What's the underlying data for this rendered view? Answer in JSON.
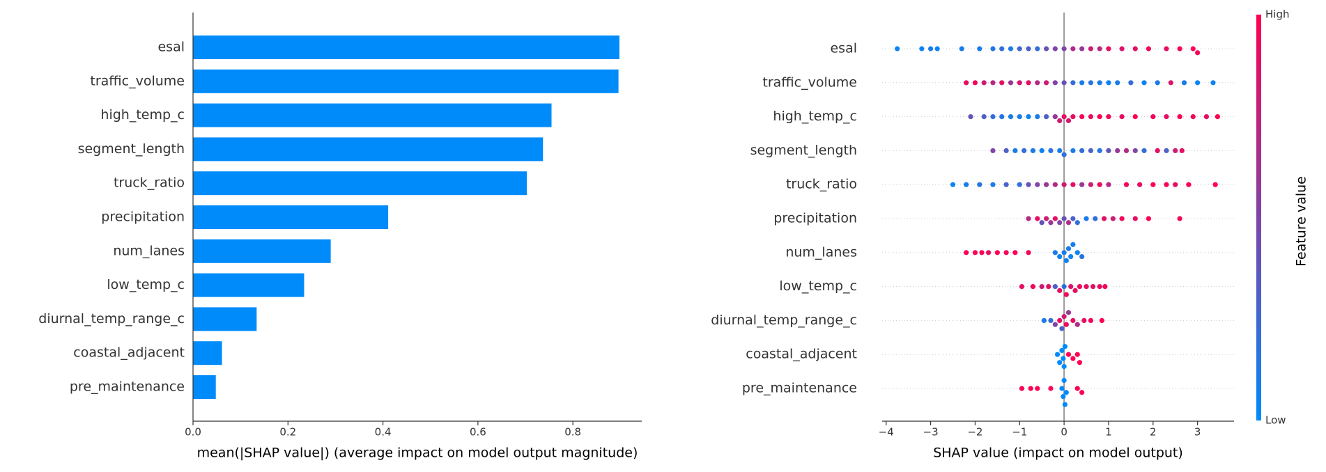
{
  "chart_data": [
    {
      "type": "bar",
      "xlabel": "mean(|SHAP value|) (average impact on model output magnitude)",
      "categories": [
        "esal",
        "traffic_volume",
        "high_temp_c",
        "segment_length",
        "truck_ratio",
        "precipitation",
        "num_lanes",
        "low_temp_c",
        "diurnal_temp_range_c",
        "coastal_adjacent",
        "pre_maintenance"
      ],
      "values": [
        0.898,
        0.896,
        0.755,
        0.737,
        0.703,
        0.411,
        0.29,
        0.234,
        0.134,
        0.061,
        0.048
      ],
      "color": "#008bfb",
      "xlim": [
        0,
        0.945
      ],
      "xticks": [
        {
          "value": 0,
          "label": "0.0"
        },
        0.2,
        0.4,
        0.6,
        0.8
      ]
    },
    {
      "type": "beeswarm",
      "xlabel": "SHAP value (impact on model output)",
      "categories": [
        "esal",
        "traffic_volume",
        "high_temp_c",
        "segment_length",
        "truck_ratio",
        "precipitation",
        "num_lanes",
        "low_temp_c",
        "diurnal_temp_range_c",
        "coastal_adjacent",
        "pre_maintenance"
      ],
      "series": [
        {
          "shap": [
            -3.75,
            -3.2,
            -3.0,
            -2.85,
            -2.3,
            -1.9,
            -1.6,
            -1.4,
            -1.2,
            -1.0,
            -0.8,
            -0.6,
            -0.4,
            -0.2,
            0,
            0.2,
            0.4,
            0.6,
            0.8,
            1.0,
            1.3,
            1.6,
            1.9,
            2.3,
            2.6,
            2.9,
            3.0
          ],
          "feature_values": [
            0.05,
            0.05,
            0.1,
            0.05,
            0.1,
            0.1,
            0.15,
            0.2,
            0.1,
            0.25,
            0.3,
            0.2,
            0.4,
            0.5,
            0.5,
            0.7,
            0.6,
            0.8,
            0.7,
            0.9,
            0.85,
            0.9,
            0.95,
            0.9,
            0.95,
            1,
            0.95
          ]
        },
        {
          "shap": [
            -2.2,
            -2.0,
            -1.8,
            -1.6,
            -1.4,
            -1.2,
            -1.0,
            -0.8,
            -0.6,
            -0.4,
            -0.2,
            0,
            0.2,
            0.4,
            0.6,
            0.8,
            1.0,
            1.2,
            1.5,
            1.8,
            2.1,
            2.4,
            2.7,
            3.0,
            3.35
          ],
          "feature_values": [
            0.9,
            0.95,
            0.8,
            0.7,
            0.9,
            0.6,
            0.85,
            0.9,
            0.7,
            0.8,
            0.5,
            0.4,
            0.2,
            0.1,
            0.15,
            0.1,
            0.05,
            0.1,
            0.2,
            0.05,
            0.1,
            0.85,
            0.1,
            0.05,
            0.05
          ]
        },
        {
          "shap": [
            -2.1,
            -1.8,
            -1.6,
            -1.4,
            -1.2,
            -1.0,
            -0.8,
            -0.6,
            -0.4,
            -0.2,
            -0.1,
            0,
            0.1,
            0.2,
            0.4,
            0.6,
            0.8,
            1.0,
            1.3,
            1.6,
            2.0,
            2.3,
            2.6,
            2.9,
            3.2,
            3.45
          ],
          "feature_values": [
            0.4,
            0.3,
            0.2,
            0.15,
            0.1,
            0.1,
            0.05,
            0.1,
            0.3,
            0.6,
            0.8,
            0.9,
            0.85,
            0.9,
            0.95,
            0.9,
            1,
            0.95,
            0.9,
            1,
            0.95,
            0.9,
            1,
            0.95,
            0.9,
            1
          ]
        },
        {
          "shap": [
            -1.6,
            -1.3,
            -1.1,
            -0.9,
            -0.7,
            -0.5,
            -0.3,
            -0.1,
            0,
            0.2,
            0.4,
            0.6,
            0.8,
            1.0,
            1.2,
            1.4,
            1.6,
            1.8,
            2.1,
            2.3,
            2.5,
            2.65
          ],
          "feature_values": [
            0.5,
            0.3,
            0.1,
            0.2,
            0.1,
            0.05,
            0.15,
            0.1,
            0.2,
            0.1,
            0.2,
            0.3,
            0.15,
            0.4,
            0.6,
            0.7,
            0.5,
            0.2,
            0.9,
            0.3,
            0.8,
            0.9
          ]
        },
        {
          "shap": [
            -2.5,
            -2.2,
            -1.9,
            -1.6,
            -1.3,
            -1.0,
            -0.8,
            -0.6,
            -0.4,
            -0.2,
            0,
            0.2,
            0.4,
            0.6,
            0.8,
            1.0,
            1.4,
            1.7,
            2.0,
            2.3,
            2.5,
            2.8,
            3.4
          ],
          "feature_values": [
            0.05,
            0.1,
            0.15,
            0.1,
            0.3,
            0.2,
            0.4,
            0.5,
            0.6,
            0.7,
            0.8,
            0.9,
            0.6,
            0.8,
            0.9,
            0.7,
            0.95,
            0.9,
            1,
            0.95,
            0.9,
            1,
            1
          ]
        },
        {
          "shap": [
            -0.8,
            -0.6,
            -0.5,
            -0.4,
            -0.3,
            -0.2,
            -0.1,
            0,
            0.1,
            0.2,
            0.3,
            0.5,
            0.7,
            0.9,
            1.1,
            1.3,
            1.6,
            1.9,
            2.6
          ],
          "feature_values": [
            0.7,
            0.9,
            0.4,
            0.8,
            0.6,
            0.9,
            0.5,
            0.4,
            0.7,
            0.3,
            0.2,
            0.1,
            0.2,
            0.9,
            0.8,
            0.95,
            0.9,
            1,
            0.95
          ]
        },
        {
          "shap": [
            -2.2,
            -2.0,
            -1.85,
            -1.7,
            -1.5,
            -1.3,
            -1.1,
            -0.8,
            -0.2,
            -0.1,
            0,
            0.05,
            0.1,
            0.15,
            0.2,
            0.3,
            0.4
          ],
          "feature_values": [
            1,
            0.95,
            1,
            0.9,
            1,
            0.95,
            1,
            0.95,
            0.1,
            0.05,
            0.1,
            0.05,
            0.1,
            0.05,
            0.1,
            0.05,
            0.15
          ]
        },
        {
          "shap": [
            -0.95,
            -0.7,
            -0.5,
            -0.35,
            -0.2,
            -0.1,
            0,
            0.05,
            0.15,
            0.25,
            0.35,
            0.5,
            0.65,
            0.8,
            0.92
          ],
          "feature_values": [
            0.9,
            0.95,
            0.8,
            0.9,
            0.3,
            0.9,
            0.2,
            0.95,
            0.85,
            0.9,
            0.95,
            0.9,
            0.85,
            0.9,
            0.95
          ]
        },
        {
          "shap": [
            -0.45,
            -0.3,
            -0.2,
            -0.1,
            -0.05,
            0,
            0.05,
            0.1,
            0.2,
            0.3,
            0.45,
            0.6,
            0.85
          ],
          "feature_values": [
            0.1,
            0.2,
            0.5,
            0.9,
            0.3,
            0.8,
            0.95,
            0.6,
            0.9,
            0.7,
            0.9,
            0.95,
            1
          ]
        },
        {
          "shap": [
            -0.15,
            -0.1,
            -0.05,
            -0.02,
            0,
            0.02,
            0.1,
            0.2,
            0.3,
            0.35
          ],
          "feature_values": [
            0,
            0,
            0,
            0,
            0,
            0,
            1,
            1,
            1,
            1
          ]
        },
        {
          "shap": [
            -0.95,
            -0.75,
            -0.6,
            -0.3,
            -0.05,
            -0.02,
            0,
            0.02,
            0.05,
            0.3,
            0.4
          ],
          "feature_values": [
            1,
            1,
            1,
            1,
            0,
            0,
            0,
            0,
            0,
            1,
            1
          ]
        }
      ],
      "xlim": [
        -4.09,
        3.82
      ],
      "xticks": [
        {
          "value": -4,
          "label": "−4"
        },
        {
          "value": -3,
          "label": "−3"
        },
        {
          "value": -2,
          "label": "−2"
        },
        {
          "value": -1,
          "label": "−1"
        },
        0,
        1,
        2,
        3
      ],
      "colorbar": {
        "label": "Feature value",
        "high": "High",
        "low": "Low",
        "low_color": "#008afb",
        "high_color": "#ff0052"
      }
    }
  ]
}
